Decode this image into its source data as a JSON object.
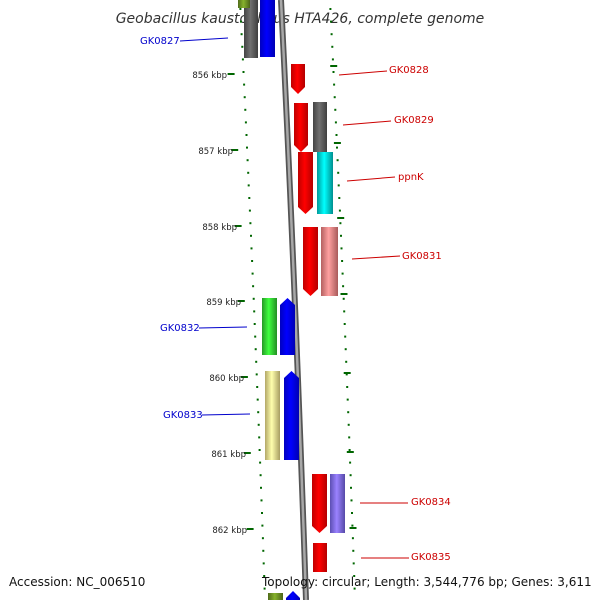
{
  "title": "Geobacillus kaustophilus HTA426, complete genome",
  "footer": {
    "accession": "Accession: NC_006510",
    "topology": "Topology: circular; Length: 3,544,776 bp; Genes: 3,611"
  },
  "scale_labels": [
    "856 kbp",
    "857 kbp",
    "858 kbp",
    "859 kbp",
    "860 kbp",
    "861 kbp",
    "862 kbp"
  ],
  "left_genes": [
    {
      "label": "GK0827",
      "color": "#0000cc",
      "strand_colors": [
        "#5a5a5a",
        "#0000ff"
      ],
      "inner_top_color": "#6b8e23"
    },
    {
      "label": "GK0832",
      "color": "#0000cc",
      "strand_colors": [
        "#33cc33",
        "#0000ff"
      ]
    },
    {
      "label": "GK0833",
      "color": "#0000cc",
      "strand_colors": [
        "#eee08a",
        "#0000ff"
      ]
    }
  ],
  "right_genes": [
    {
      "label": "GK0828",
      "color": "#cc0000",
      "strand_colors": [
        "#ff0000"
      ]
    },
    {
      "label": "GK0829",
      "color": "#cc0000",
      "strand_colors": [
        "#ff0000",
        "#5a5a5a"
      ]
    },
    {
      "label": "ppnK",
      "color": "#cc0000",
      "strand_colors": [
        "#ff0000",
        "#00cccc"
      ]
    },
    {
      "label": "GK0831",
      "color": "#cc0000",
      "strand_colors": [
        "#ff0000",
        "#f08080"
      ]
    },
    {
      "label": "GK0834",
      "color": "#cc0000",
      "strand_colors": [
        "#ff0000",
        "#7b68ee"
      ]
    },
    {
      "label": "GK0835",
      "color": "#cc0000",
      "strand_colors": [
        "#ff0000"
      ]
    }
  ],
  "colors": {
    "left_label": "#0000cc",
    "right_label": "#cc0000",
    "tick_green": "#006600",
    "backbone": "#8c8c8c"
  }
}
